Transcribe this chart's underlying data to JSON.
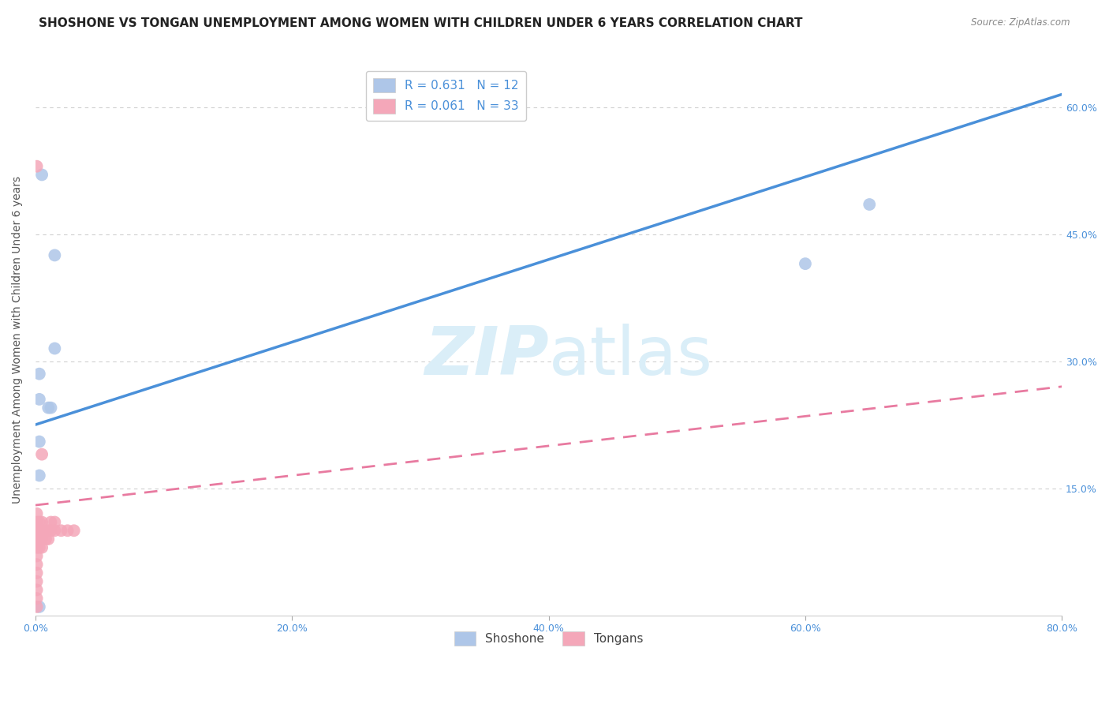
{
  "title": "SHOSHONE VS TONGAN UNEMPLOYMENT AMONG WOMEN WITH CHILDREN UNDER 6 YEARS CORRELATION CHART",
  "source": "Source: ZipAtlas.com",
  "ylabel": "Unemployment Among Women with Children Under 6 years",
  "xlim": [
    0.0,
    0.8
  ],
  "ylim": [
    0.0,
    0.65
  ],
  "shoshone_R": 0.631,
  "shoshone_N": 12,
  "tongan_R": 0.061,
  "tongan_N": 33,
  "shoshone_color": "#aec6e8",
  "tongan_color": "#f4a7b9",
  "shoshone_line_color": "#4a90d9",
  "tongan_line_color": "#e87aa0",
  "shoshone_x": [
    0.003,
    0.003,
    0.003,
    0.003,
    0.005,
    0.01,
    0.012,
    0.015,
    0.015,
    0.003,
    0.6,
    0.65
  ],
  "shoshone_y": [
    0.285,
    0.255,
    0.205,
    0.165,
    0.52,
    0.245,
    0.245,
    0.315,
    0.425,
    0.01,
    0.415,
    0.485
  ],
  "tongan_x": [
    0.001,
    0.001,
    0.001,
    0.001,
    0.001,
    0.001,
    0.001,
    0.001,
    0.001,
    0.001,
    0.001,
    0.001,
    0.001,
    0.003,
    0.003,
    0.003,
    0.003,
    0.005,
    0.005,
    0.005,
    0.005,
    0.005,
    0.008,
    0.008,
    0.01,
    0.01,
    0.012,
    0.012,
    0.015,
    0.015,
    0.02,
    0.025,
    0.03
  ],
  "tongan_y": [
    0.01,
    0.02,
    0.03,
    0.04,
    0.05,
    0.06,
    0.07,
    0.08,
    0.09,
    0.1,
    0.11,
    0.12,
    0.53,
    0.08,
    0.09,
    0.1,
    0.11,
    0.08,
    0.09,
    0.1,
    0.11,
    0.19,
    0.09,
    0.1,
    0.09,
    0.1,
    0.1,
    0.11,
    0.1,
    0.11,
    0.1,
    0.1,
    0.1
  ],
  "shoshone_line_x0": 0.0,
  "shoshone_line_y0": 0.225,
  "shoshone_line_x1": 0.8,
  "shoshone_line_y1": 0.615,
  "tongan_line_x0": 0.0,
  "tongan_line_y0": 0.13,
  "tongan_line_x1": 0.8,
  "tongan_line_y1": 0.27,
  "background_color": "#ffffff",
  "grid_color": "#d0d0d0",
  "title_fontsize": 11,
  "axis_label_fontsize": 10,
  "tick_fontsize": 9,
  "legend_fontsize": 11,
  "watermark_color": "#daeef8"
}
